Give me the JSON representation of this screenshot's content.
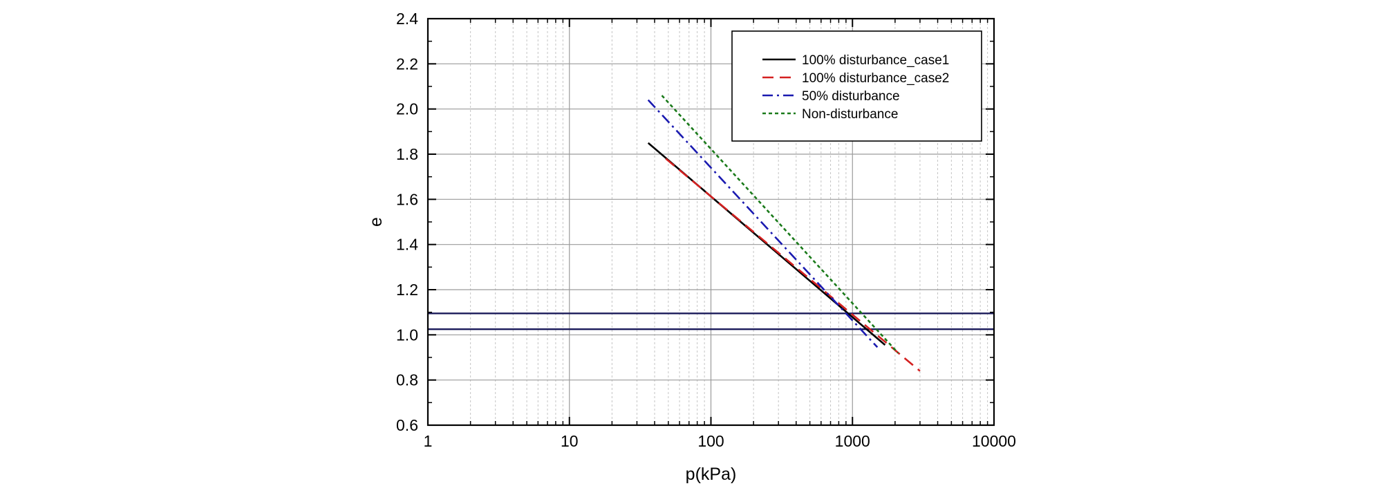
{
  "chart_data": {
    "type": "line",
    "x_scale": "log",
    "xlabel": "p(kPa)",
    "ylabel": "e",
    "xlim": [
      1,
      10000
    ],
    "ylim": [
      0.6,
      2.4
    ],
    "x_ticks": [
      1,
      10,
      100,
      1000,
      10000
    ],
    "x_tick_labels": [
      "1",
      "10",
      "100",
      "1000",
      "10000"
    ],
    "y_ticks": [
      0.6,
      0.8,
      1.0,
      1.2,
      1.4,
      1.6,
      1.8,
      2.0,
      2.2,
      2.4
    ],
    "y_tick_labels": [
      "0.6",
      "0.8",
      "1.0",
      "1.2",
      "1.4",
      "1.6",
      "1.8",
      "2.0",
      "2.2",
      "2.4"
    ],
    "grid": true,
    "legend_position": "top-right",
    "series": [
      {
        "name": "100% disturbance_case1",
        "color": "#000000",
        "dash": "solid",
        "x": [
          36,
          1700
        ],
        "y": [
          1.85,
          0.955
        ]
      },
      {
        "name": "100% disturbance_case2",
        "color": "#d42020",
        "dash": "dashed",
        "x": [
          48,
          3000
        ],
        "y": [
          1.78,
          0.84
        ]
      },
      {
        "name": "50% disturbance",
        "color": "#1a1ab0",
        "dash": "dashdot",
        "x": [
          36,
          1500
        ],
        "y": [
          2.04,
          0.945
        ]
      },
      {
        "name": "Non-disturbance",
        "color": "#1a7a1a",
        "dash": "dotted",
        "x": [
          45,
          2100
        ],
        "y": [
          2.06,
          0.92
        ]
      }
    ],
    "reference_lines": [
      {
        "name": "hline-upper",
        "axis": "y",
        "value": 1.095,
        "color": "#1a1a5a"
      },
      {
        "name": "hline-lower",
        "axis": "y",
        "value": 1.025,
        "color": "#1a1a5a"
      }
    ]
  }
}
